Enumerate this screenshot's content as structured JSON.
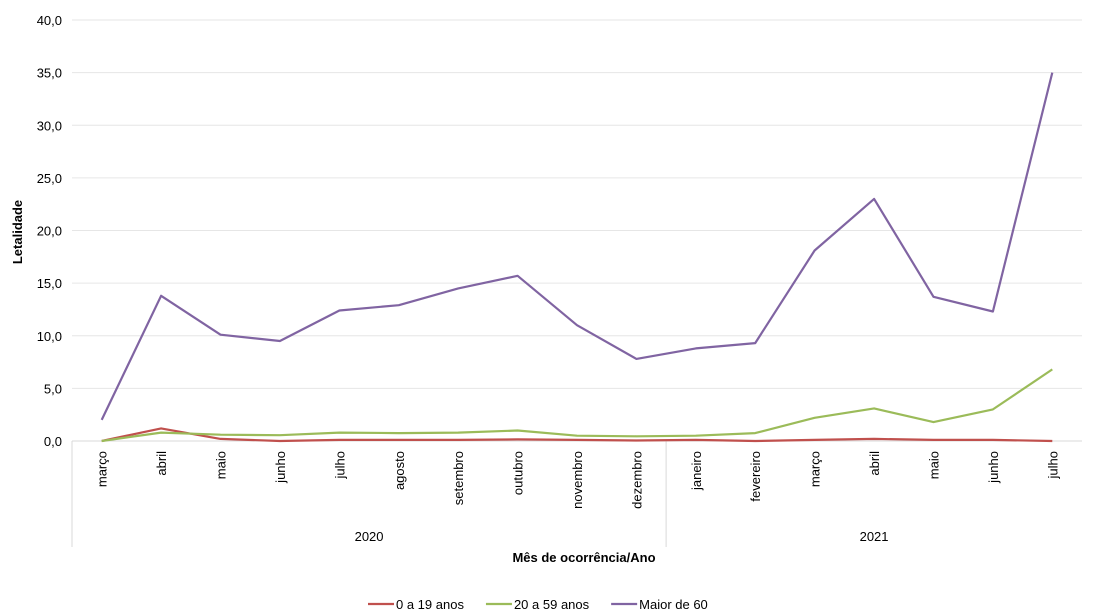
{
  "chart_data": {
    "type": "line",
    "ylabel": "Letalidade",
    "xlabel": "Mês de ocorrência/Ano",
    "ylim": [
      0,
      40
    ],
    "yticks": [
      "0,0",
      "5,0",
      "10,0",
      "15,0",
      "20,0",
      "25,0",
      "30,0",
      "35,0",
      "40,0"
    ],
    "grid": true,
    "legend_position": "bottom",
    "categories": [
      "março",
      "abril",
      "maio",
      "junho",
      "julho",
      "agosto",
      "setembro",
      "outubro",
      "novembro",
      "dezembro",
      "janeiro",
      "fevereiro",
      "março",
      "abril",
      "maio",
      "junho",
      "julho"
    ],
    "groups": [
      {
        "label": "2020",
        "count": 10
      },
      {
        "label": "2021",
        "count": 7
      }
    ],
    "series": [
      {
        "name": "0 a 19 anos",
        "color": "#c0504d",
        "values": [
          0.0,
          1.2,
          0.2,
          0.0,
          0.1,
          0.1,
          0.1,
          0.15,
          0.1,
          0.05,
          0.1,
          0.0,
          0.1,
          0.2,
          0.1,
          0.1,
          0.0
        ]
      },
      {
        "name": "20 a 59 anos",
        "color": "#9bbb59",
        "values": [
          0.0,
          0.8,
          0.6,
          0.55,
          0.8,
          0.75,
          0.8,
          1.0,
          0.5,
          0.45,
          0.5,
          0.75,
          2.2,
          3.1,
          1.8,
          3.0,
          6.8
        ]
      },
      {
        "name": "Maior de 60",
        "color": "#8064a2",
        "values": [
          2.0,
          13.8,
          10.1,
          9.5,
          12.4,
          12.9,
          14.5,
          15.7,
          11.0,
          7.8,
          8.8,
          9.3,
          18.1,
          23.0,
          13.7,
          12.3,
          35.0
        ]
      }
    ]
  }
}
